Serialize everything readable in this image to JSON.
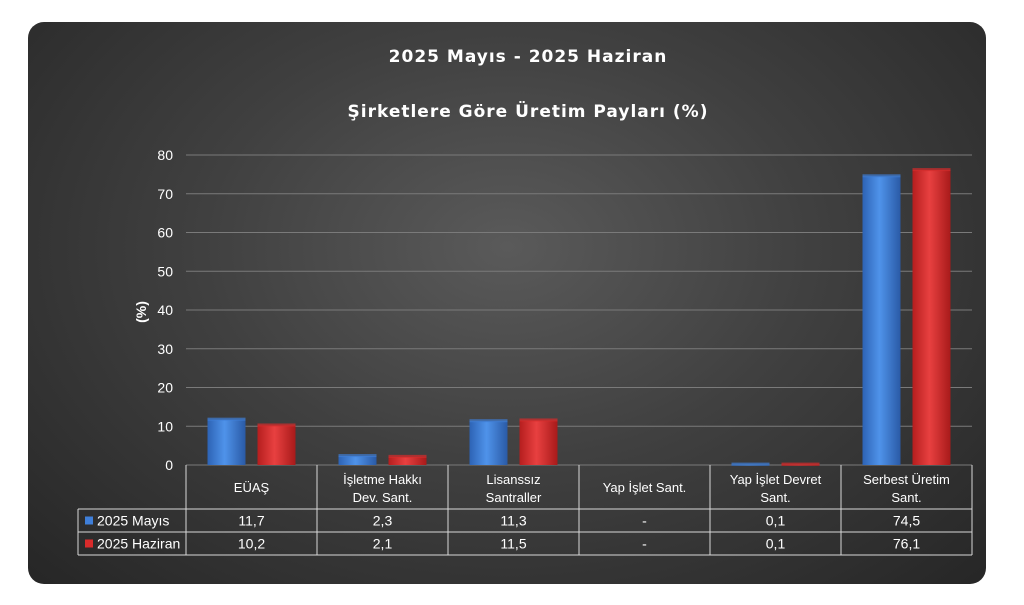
{
  "chart_data": {
    "type": "bar",
    "title_line1": "2025 Mayıs - 2025 Haziran",
    "title_line2": "Şirketlere Göre Üretim Payları (%)",
    "ylabel": "(%)",
    "xlabel": "",
    "ylim": [
      0,
      80
    ],
    "yticks": [
      0,
      10,
      20,
      30,
      40,
      50,
      60,
      70,
      80
    ],
    "grid": true,
    "legend_placement": "data-table",
    "categories": [
      [
        "EÜAŞ"
      ],
      [
        "İşletme Hakkı",
        "Dev. Sant."
      ],
      [
        "Lisanssız",
        "Santraller"
      ],
      [
        "Yap İşlet Sant."
      ],
      [
        "Yap İşlet Devret",
        "Sant."
      ],
      [
        "Serbest Üretim",
        "Sant."
      ]
    ],
    "series": [
      {
        "name": "2025 Mayıs",
        "color": "#3f7fd9",
        "values": [
          11.7,
          2.3,
          11.3,
          null,
          0.1,
          74.5
        ],
        "labels": [
          "11,7",
          "2,3",
          "11,3",
          "-",
          "0,1",
          "74,5"
        ]
      },
      {
        "name": "2025 Haziran",
        "color": "#d92b2b",
        "values": [
          10.2,
          2.1,
          11.5,
          null,
          0.1,
          76.1
        ],
        "labels": [
          "10,2",
          "2,1",
          "11,5",
          "-",
          "0,1",
          "76,1"
        ]
      }
    ]
  }
}
